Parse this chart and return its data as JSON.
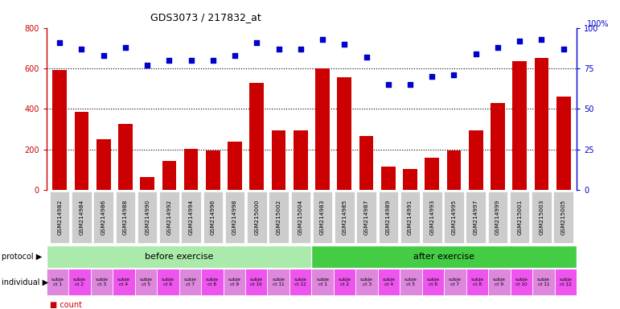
{
  "title": "GDS3073 / 217832_at",
  "samples": [
    "GSM214982",
    "GSM214984",
    "GSM214986",
    "GSM214988",
    "GSM214990",
    "GSM214992",
    "GSM214994",
    "GSM214996",
    "GSM214998",
    "GSM215000",
    "GSM215002",
    "GSM215004",
    "GSM214983",
    "GSM214985",
    "GSM214987",
    "GSM214989",
    "GSM214991",
    "GSM214993",
    "GSM214995",
    "GSM214997",
    "GSM214999",
    "GSM215001",
    "GSM215003",
    "GSM215005"
  ],
  "counts": [
    590,
    385,
    250,
    325,
    65,
    145,
    205,
    195,
    240,
    530,
    295,
    295,
    600,
    555,
    265,
    115,
    105,
    160,
    195,
    295,
    430,
    635,
    650,
    460
  ],
  "percentiles": [
    91,
    87,
    83,
    88,
    77,
    80,
    80,
    80,
    83,
    91,
    87,
    87,
    93,
    90,
    82,
    65,
    65,
    70,
    71,
    84,
    88,
    92,
    93,
    87
  ],
  "bar_color": "#cc0000",
  "dot_color": "#0000cc",
  "ylim_left": [
    0,
    800
  ],
  "ylim_right": [
    0,
    100
  ],
  "yticks_left": [
    0,
    200,
    400,
    600,
    800
  ],
  "yticks_right": [
    0,
    25,
    50,
    75,
    100
  ],
  "before_exercise_count": 12,
  "after_exercise_count": 12,
  "protocol_before_color": "#aaeaaa",
  "protocol_after_color": "#44cc44",
  "background_color": "#ffffff",
  "axis_color_left": "#cc0000",
  "axis_color_right": "#0000cc",
  "xticklabel_bg": "#cccccc",
  "ind_colors": [
    "#dd88dd",
    "#ee55ee"
  ],
  "ind_labels_before": [
    "subje\nct 1",
    "subje\nct 2",
    "subje\nct 3",
    "subje\nct 4",
    "subje\nct 5",
    "subje\nct 6",
    "subje\nct 7",
    "subje\nct 8",
    "subje\nct 9",
    "subje\nct 10",
    "subje\nct 11",
    "subje\nct 12"
  ],
  "ind_labels_after": [
    "subje\nct 1",
    "subje\nct 2",
    "subje\nct 3",
    "subje\nct 4",
    "subje\nct 5",
    "subje\nct 6",
    "subje\nct 7",
    "subje\nct 8",
    "subje\nct 9",
    "subje\nct 10",
    "subje\nct 11",
    "subje\nct 12"
  ]
}
